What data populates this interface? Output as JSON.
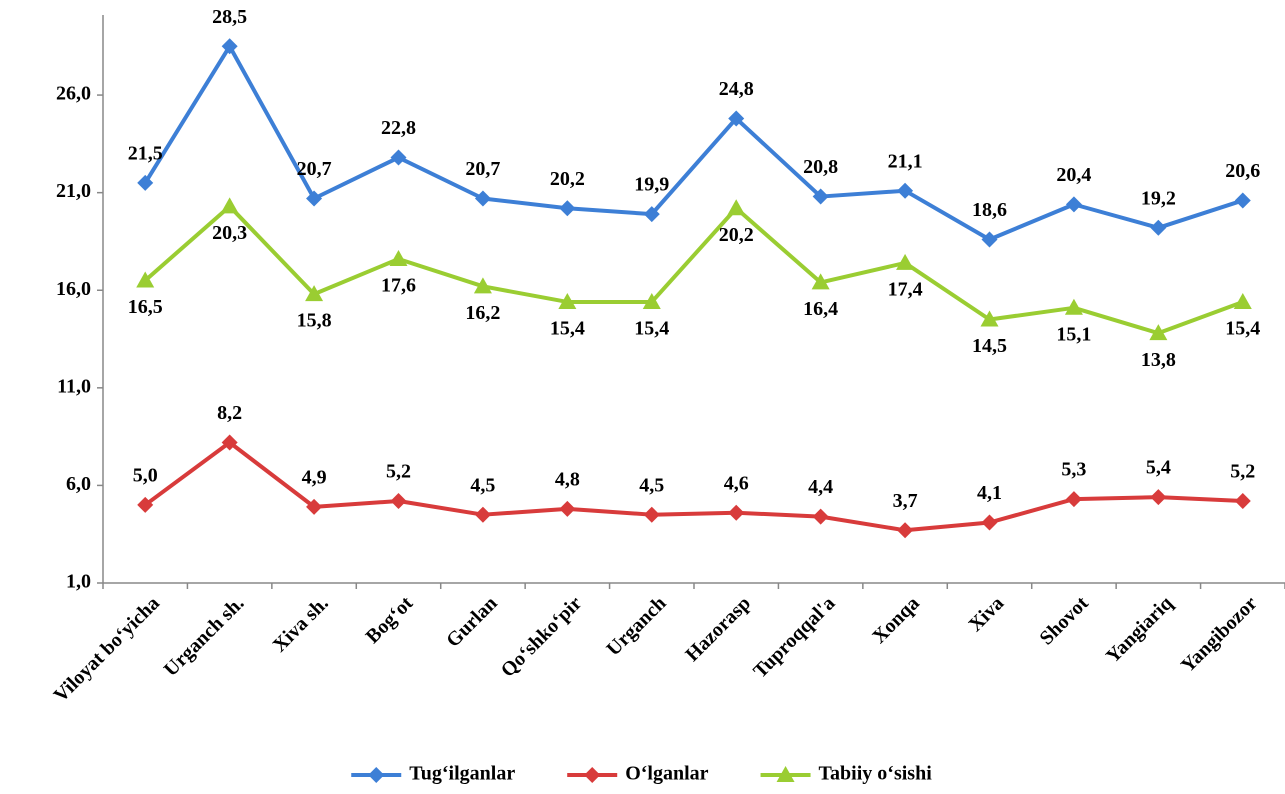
{
  "chart_data": {
    "type": "line",
    "categories": [
      "Viloyat bo‘yicha",
      "Urganch sh.",
      "Xiva sh.",
      "Bog‘ot",
      "Gurlan",
      "Qo‘shko‘pir",
      "Urganch",
      "Hazorasp",
      "Tuproqqal'a",
      "Xonqa",
      "Xiva",
      "Shovot",
      "Yangiariq",
      "Yangibozor"
    ],
    "series": [
      {
        "name": "Tug‘ilganlar",
        "color": "#3d7fd6",
        "marker": "diamond",
        "label_position": "above",
        "values": [
          21.5,
          28.5,
          20.7,
          22.8,
          20.7,
          20.2,
          19.9,
          24.8,
          20.8,
          21.1,
          18.6,
          20.4,
          19.2,
          20.6
        ],
        "value_labels": [
          "21,5",
          "28,5",
          "20,7",
          "22,8",
          "20,7",
          "20,2",
          "19,9",
          "24,8",
          "20,8",
          "21,1",
          "18,6",
          "20,4",
          "19,2",
          "20,6"
        ]
      },
      {
        "name": "O‘lganlar",
        "color": "#d83b3b",
        "marker": "diamond",
        "label_position": "above",
        "values": [
          5.0,
          8.2,
          4.9,
          5.2,
          4.5,
          4.8,
          4.5,
          4.6,
          4.4,
          3.7,
          4.1,
          5.3,
          5.4,
          5.2
        ],
        "value_labels": [
          "5,0",
          "8,2",
          "4,9",
          "5,2",
          "4,5",
          "4,8",
          "4,5",
          "4,6",
          "4,4",
          "3,7",
          "4,1",
          "5,3",
          "5,4",
          "5,2"
        ]
      },
      {
        "name": "Tabiiy o‘sishi",
        "color": "#9acd32",
        "marker": "triangle",
        "label_position": "below",
        "values": [
          16.5,
          20.3,
          15.8,
          17.6,
          16.2,
          15.4,
          15.4,
          20.2,
          16.4,
          17.4,
          14.5,
          15.1,
          13.8,
          15.4
        ],
        "value_labels": [
          "16,5",
          "20,3",
          "15,8",
          "17,6",
          "16,2",
          "15,4",
          "15,4",
          "20,2",
          "16,4",
          "17,4",
          "14,5",
          "15,1",
          "13,8",
          "15,4"
        ]
      }
    ],
    "ylim": [
      1,
      30
    ],
    "yticks": [
      {
        "value": 1,
        "label": "1,0"
      },
      {
        "value": 6,
        "label": "6,0"
      },
      {
        "value": 11,
        "label": "11,0"
      },
      {
        "value": 16,
        "label": "16,0"
      },
      {
        "value": 21,
        "label": "21,0"
      },
      {
        "value": 26,
        "label": "26,0"
      }
    ],
    "grid": false,
    "legend": "bottom"
  }
}
